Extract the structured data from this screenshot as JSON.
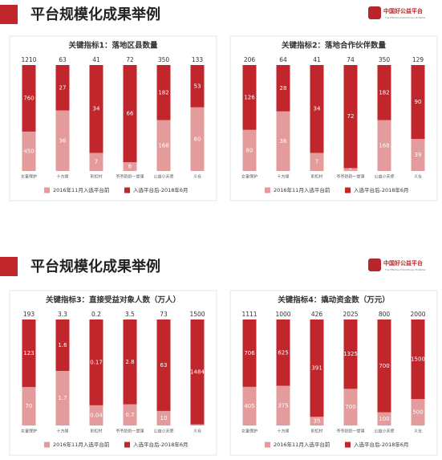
{
  "slides": [
    {
      "title": "平台规模化成果举例",
      "logo": "中国好公益平台",
      "tagline": "The Effective Philanthropy Multiplier"
    },
    {
      "title": "平台规模化成果举例",
      "logo": "中国好公益平台",
      "tagline": "The Effective Philanthropy Multiplier"
    }
  ],
  "chart_data": [
    {
      "type": "bar",
      "stacked": "percent",
      "title": "关键指标1：落地区县数量",
      "categories": [
        "女童保护",
        "十方缘",
        "彩虹村",
        "爷爷奶奶一堂课",
        "公益小天使",
        "义仓"
      ],
      "totals": [
        1210,
        63,
        41,
        72,
        350,
        133
      ],
      "series": [
        {
          "name": "2016年11月入选平台前",
          "color": "#e39b9c",
          "values": [
            450,
            36,
            7,
            6,
            168,
            80
          ]
        },
        {
          "name": "入选平台后-2018年6月",
          "color": "#c0262b",
          "values": [
            760,
            27,
            34,
            66,
            182,
            53
          ]
        }
      ]
    },
    {
      "type": "bar",
      "stacked": "percent",
      "title": "关键指标2：落地合作伙伴数量",
      "categories": [
        "女童保护",
        "十方缘",
        "彩虹村",
        "爷爷奶奶一堂课",
        "公益小天使",
        "义仓"
      ],
      "totals": [
        206,
        64,
        41,
        74,
        350,
        129
      ],
      "series": [
        {
          "name": "2016年11月入选平台前",
          "color": "#e39b9c",
          "values": [
            80,
            36,
            7,
            2,
            168,
            39
          ]
        },
        {
          "name": "入选平台后-2018年6月",
          "color": "#c0262b",
          "values": [
            126,
            28,
            34,
            72,
            182,
            90
          ]
        }
      ]
    },
    {
      "type": "bar",
      "stacked": "percent",
      "title": "关键指标3：直接受益对象人数（万人）",
      "categories": [
        "女童保护",
        "十方缘",
        "彩虹村",
        "爷爷奶奶一堂课",
        "公益小天使",
        "义仓"
      ],
      "totals": [
        193,
        3.3,
        0.2,
        3.5,
        73,
        1500
      ],
      "series": [
        {
          "name": "2016年11月入选平台前",
          "color": "#e39b9c",
          "values": [
            70,
            1.7,
            0.04,
            0.7,
            10,
            16
          ]
        },
        {
          "name": "入选平台后-2018年6月",
          "color": "#c0262b",
          "values": [
            123,
            1.6,
            0.17,
            2.8,
            63,
            1484
          ]
        }
      ]
    },
    {
      "type": "bar",
      "stacked": "percent",
      "title": "关键指标4：撬动资金数（万元）",
      "categories": [
        "女童保护",
        "十方缘",
        "彩虹村",
        "爷爷奶奶一堂课",
        "公益小天使",
        "义仓"
      ],
      "totals": [
        1111,
        1000,
        426,
        2025,
        800,
        2000
      ],
      "series": [
        {
          "name": "2016年11月入选平台前",
          "color": "#e39b9c",
          "values": [
            405,
            375,
            35,
            700,
            100,
            500
          ]
        },
        {
          "name": "入选平台后-2018年6月",
          "color": "#c0262b",
          "values": [
            706,
            625,
            391,
            1325,
            700,
            1500
          ]
        }
      ]
    }
  ]
}
